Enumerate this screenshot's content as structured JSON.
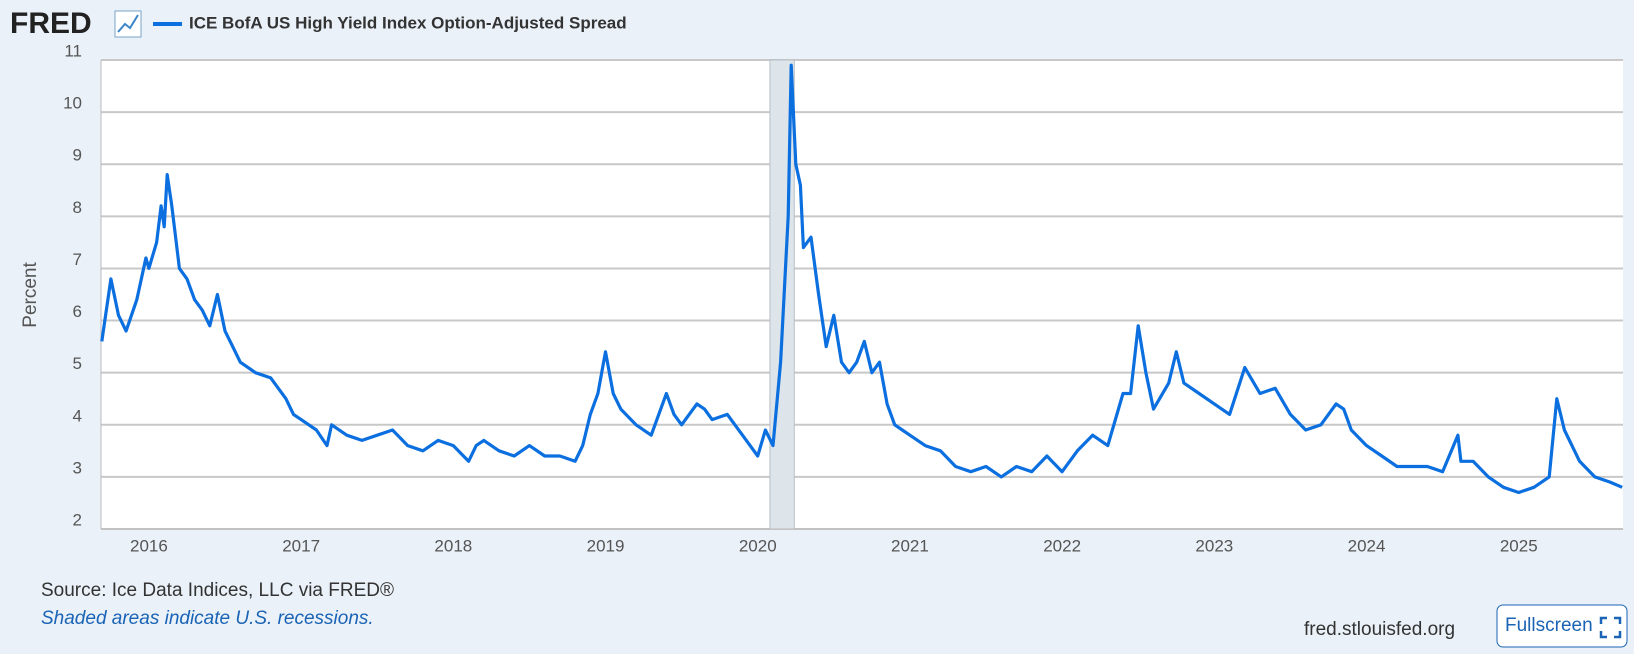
{
  "logo": "FRED",
  "chart_data": {
    "type": "line",
    "y_label": "Percent",
    "x": [
      2015.69,
      2015.75,
      2015.8,
      2015.85,
      2015.92,
      2015.98,
      2016.0,
      2016.05,
      2016.08,
      2016.1,
      2016.12,
      2016.15,
      2016.2,
      2016.25,
      2016.3,
      2016.35,
      2016.4,
      2016.45,
      2016.5,
      2016.55,
      2016.6,
      2016.7,
      2016.8,
      2016.85,
      2016.9,
      2016.95,
      2017.0,
      2017.1,
      2017.17,
      2017.2,
      2017.3,
      2017.4,
      2017.5,
      2017.6,
      2017.7,
      2017.8,
      2017.9,
      2018.0,
      2018.1,
      2018.15,
      2018.2,
      2018.3,
      2018.4,
      2018.5,
      2018.6,
      2018.7,
      2018.8,
      2018.85,
      2018.9,
      2018.95,
      2019.0,
      2019.05,
      2019.1,
      2019.2,
      2019.3,
      2019.4,
      2019.45,
      2019.5,
      2019.6,
      2019.65,
      2019.7,
      2019.8,
      2019.9,
      2019.95,
      2020.0,
      2020.05,
      2020.1,
      2020.15,
      2020.2,
      2020.22,
      2020.25,
      2020.28,
      2020.3,
      2020.35,
      2020.4,
      2020.45,
      2020.5,
      2020.55,
      2020.6,
      2020.65,
      2020.7,
      2020.75,
      2020.8,
      2020.85,
      2020.9,
      2020.95,
      2021.0,
      2021.1,
      2021.2,
      2021.3,
      2021.4,
      2021.5,
      2021.6,
      2021.7,
      2021.8,
      2021.9,
      2022.0,
      2022.1,
      2022.2,
      2022.3,
      2022.4,
      2022.45,
      2022.5,
      2022.55,
      2022.6,
      2022.7,
      2022.75,
      2022.8,
      2022.9,
      2023.0,
      2023.1,
      2023.2,
      2023.3,
      2023.4,
      2023.5,
      2023.6,
      2023.7,
      2023.8,
      2023.85,
      2023.9,
      2024.0,
      2024.1,
      2024.2,
      2024.3,
      2024.4,
      2024.5,
      2024.6,
      2024.62,
      2024.7,
      2024.8,
      2024.9,
      2025.0,
      2025.1,
      2025.2,
      2025.25,
      2025.3,
      2025.4,
      2025.5,
      2025.6,
      2025.68
    ],
    "series": [
      {
        "name": "ICE BofA US High Yield Index Option-Adjusted Spread",
        "color": "#0b6fe0",
        "values": [
          5.6,
          6.8,
          6.1,
          5.8,
          6.4,
          7.2,
          7.0,
          7.5,
          8.2,
          7.8,
          8.8,
          8.2,
          7.0,
          6.8,
          6.4,
          6.2,
          5.9,
          6.5,
          5.8,
          5.5,
          5.2,
          5.0,
          4.9,
          4.7,
          4.5,
          4.2,
          4.1,
          3.9,
          3.6,
          4.0,
          3.8,
          3.7,
          3.8,
          3.9,
          3.6,
          3.5,
          3.7,
          3.6,
          3.3,
          3.6,
          3.7,
          3.5,
          3.4,
          3.6,
          3.4,
          3.4,
          3.3,
          3.6,
          4.2,
          4.6,
          5.4,
          4.6,
          4.3,
          4.0,
          3.8,
          4.6,
          4.2,
          4.0,
          4.4,
          4.3,
          4.1,
          4.2,
          3.8,
          3.6,
          3.4,
          3.9,
          3.6,
          5.2,
          8.0,
          10.9,
          9.0,
          8.6,
          7.4,
          7.6,
          6.5,
          5.5,
          6.1,
          5.2,
          5.0,
          5.2,
          5.6,
          5.0,
          5.2,
          4.4,
          4.0,
          3.9,
          3.8,
          3.6,
          3.5,
          3.2,
          3.1,
          3.2,
          3.0,
          3.2,
          3.1,
          3.4,
          3.1,
          3.5,
          3.8,
          3.6,
          4.6,
          4.6,
          5.9,
          5.0,
          4.3,
          4.8,
          5.4,
          4.8,
          4.6,
          4.4,
          4.2,
          5.1,
          4.6,
          4.7,
          4.2,
          3.9,
          4.0,
          4.4,
          4.3,
          3.9,
          3.6,
          3.4,
          3.2,
          3.2,
          3.2,
          3.1,
          3.8,
          3.3,
          3.3,
          3.0,
          2.8,
          2.7,
          2.8,
          3.0,
          4.5,
          3.9,
          3.3,
          3.0,
          2.9,
          2.8
        ]
      }
    ],
    "recessions": [
      {
        "start": 2020.08,
        "end": 2020.24
      }
    ],
    "xlim": [
      2015.685,
      2025.685
    ],
    "xticks": [
      2016,
      2017,
      2018,
      2019,
      2020,
      2021,
      2022,
      2023,
      2024,
      2025
    ],
    "ylim": [
      2,
      11
    ],
    "yticks": [
      2,
      3,
      4,
      5,
      6,
      7,
      8,
      9,
      10,
      11
    ],
    "grid": true,
    "source": "Source: Ice Data Indices, LLC via FRED®",
    "note": "Shaded areas indicate U.S. recessions."
  },
  "footer": {
    "site": "fred.stlouisfed.org",
    "button": "Fullscreen"
  }
}
